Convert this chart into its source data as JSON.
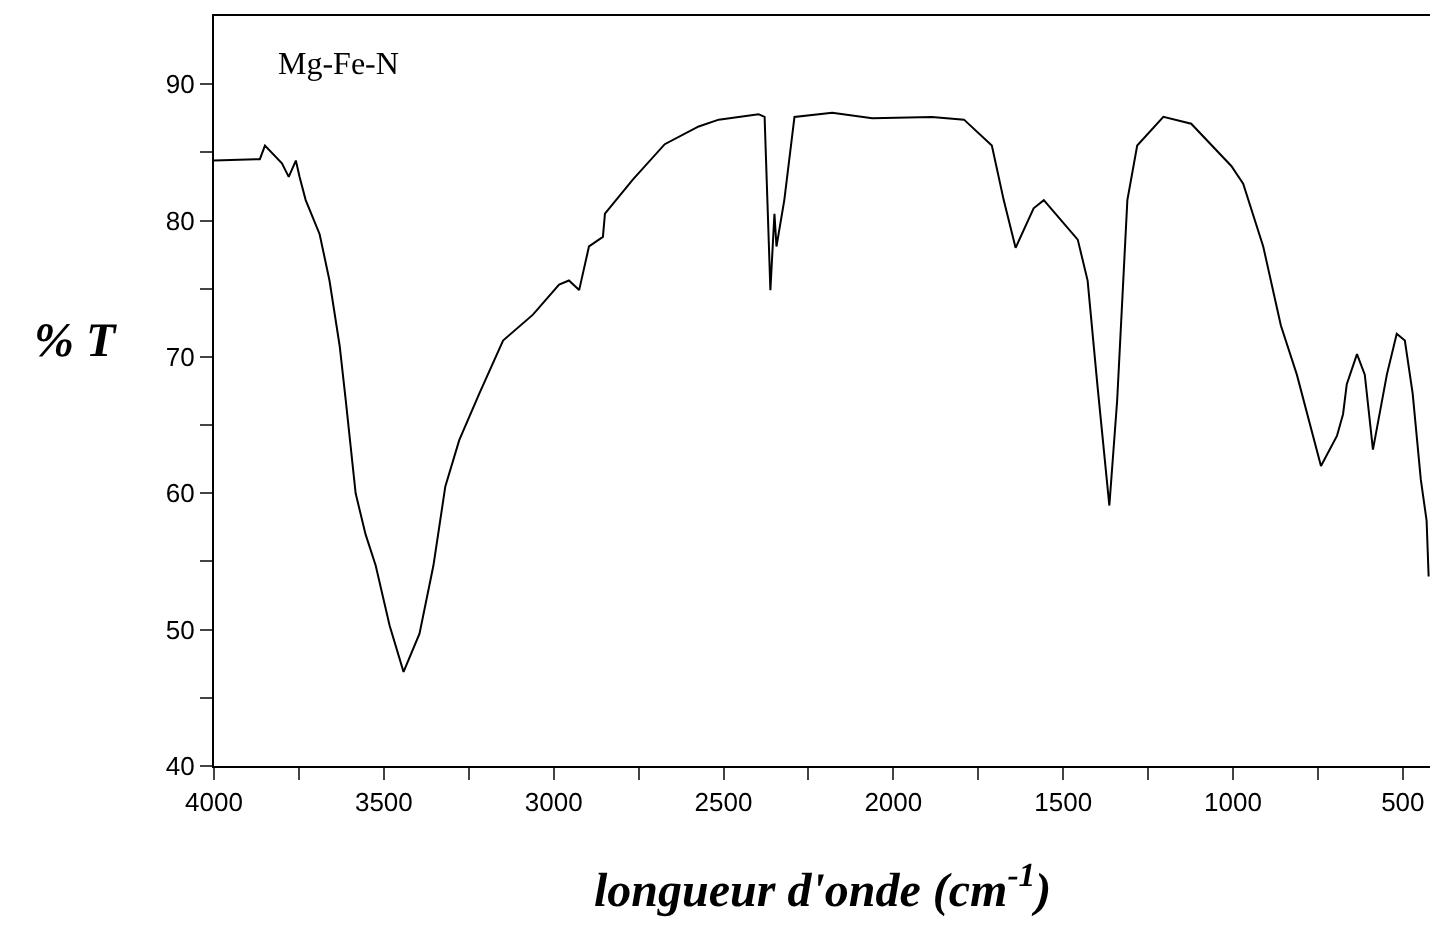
{
  "chart_data": {
    "type": "line",
    "xlabel": "longueur d'onde (cm$^{-1}$)",
    "ylabel": "% T",
    "annotations": [
      "Mg-Fe-N"
    ],
    "x": [
      4000,
      3865,
      3850,
      3800,
      3780,
      3759,
      3748,
      3730,
      3689,
      3660,
      3630,
      3612,
      3583,
      3554,
      3524,
      3483,
      3442,
      3395,
      3354,
      3319,
      3278,
      3219,
      3149,
      3061,
      2984,
      2955,
      2925,
      2896,
      2855,
      2849,
      2767,
      2673,
      2573,
      2514,
      2397,
      2379,
      2362,
      2350,
      2344,
      2321,
      2291,
      2180,
      2062,
      1886,
      1792,
      1710,
      1675,
      1640,
      1587,
      1557,
      1457,
      1428,
      1399,
      1364,
      1341,
      1311,
      1282,
      1205,
      1123,
      1005,
      970,
      911,
      859,
      812,
      741,
      694,
      676,
      665,
      635,
      612,
      588,
      547,
      518,
      494,
      471,
      447,
      430,
      424
    ],
    "series": [
      {
        "color": "#000000",
        "values": [
          84.4,
          84.5,
          85.5,
          84.2,
          83.2,
          84.4,
          83.2,
          81.5,
          79,
          75.6,
          70.8,
          66.8,
          60,
          57,
          54.7,
          50.3,
          46.9,
          49.7,
          54.7,
          60.5,
          63.9,
          67.3,
          71.2,
          73.1,
          75.3,
          75.6,
          74.9,
          78.1,
          78.8,
          80.5,
          83,
          85.6,
          86.9,
          87.4,
          87.8,
          87.6,
          74.9,
          80.5,
          78.1,
          81.5,
          87.6,
          87.9,
          87.5,
          87.6,
          87.4,
          85.5,
          81.5,
          78,
          80.9,
          81.5,
          78.6,
          75.6,
          67.9,
          59.1,
          66.8,
          81.5,
          85.5,
          87.6,
          87.1,
          84,
          82.7,
          78.1,
          72.3,
          68.7,
          62,
          64.2,
          65.8,
          68,
          70.2,
          68.7,
          63.2,
          68.7,
          71.7,
          71.2,
          67.3,
          61,
          58,
          53.9
        ]
      }
    ],
    "xlim": [
      4000,
      420
    ],
    "ylim": [
      40,
      95
    ],
    "xticks": [
      4000,
      {
        "value": 3750,
        "label": null
      },
      3500,
      {
        "value": 3250,
        "label": null
      },
      3000,
      {
        "value": 2750,
        "label": null
      },
      2500,
      {
        "value": 2250,
        "label": null
      },
      2000,
      {
        "value": 1750,
        "label": null
      },
      1500,
      {
        "value": 1250,
        "label": null
      },
      1000,
      {
        "value": 750,
        "label": null
      },
      500
    ],
    "yticks": [
      40,
      {
        "value": 45,
        "label": null
      },
      50,
      {
        "value": 55,
        "label": null
      },
      60,
      {
        "value": 65,
        "label": null
      },
      70,
      {
        "value": 75,
        "label": null
      },
      80,
      {
        "value": 85,
        "label": null
      },
      90
    ],
    "marker": "none",
    "line_style": "solid"
  }
}
